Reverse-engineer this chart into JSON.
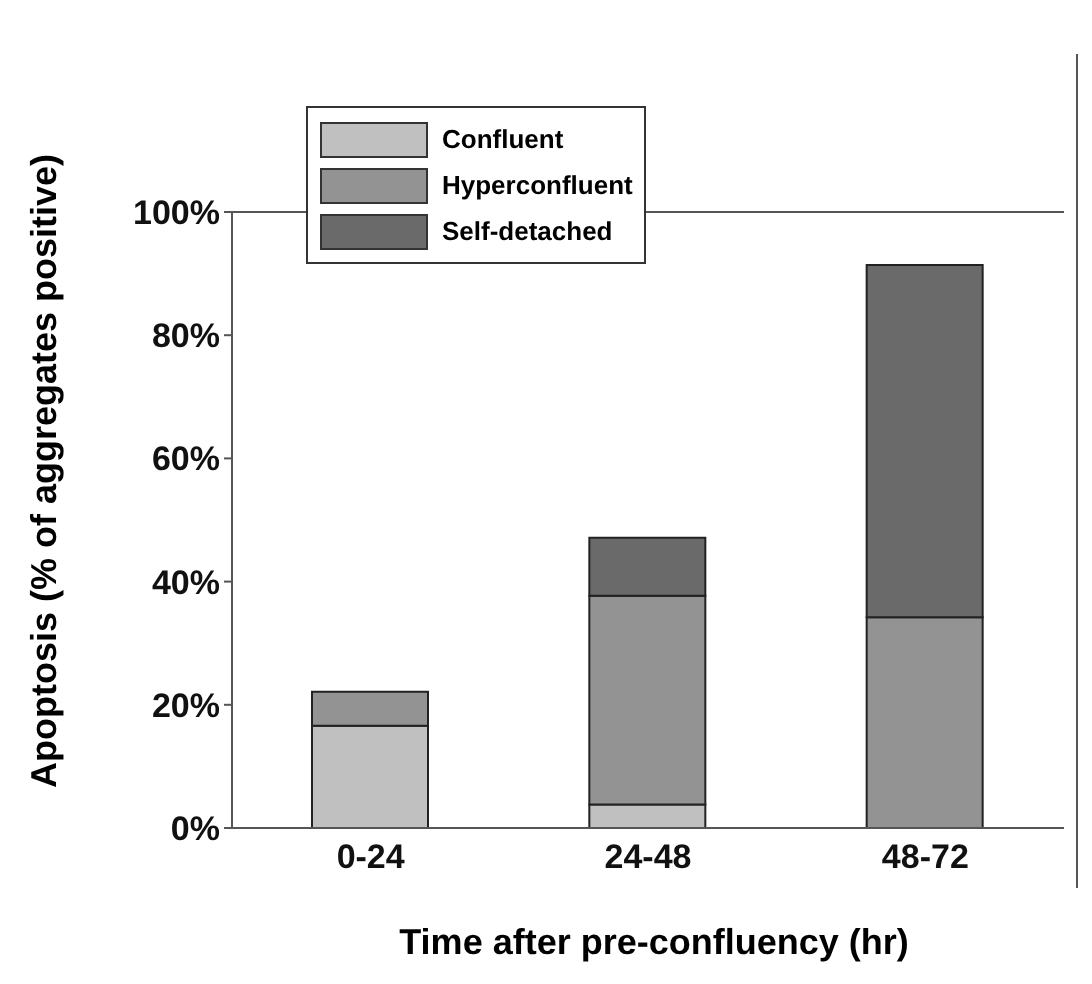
{
  "chart_data": {
    "type": "bar",
    "stacked": true,
    "xlabel": "Time after pre-confluency (hr)",
    "ylabel": "Apoptosis (% of aggregates positive)",
    "categories": [
      "0-24",
      "24-48",
      "48-72"
    ],
    "series": [
      {
        "name": "Confluent",
        "color": "#c0c0c0",
        "values": [
          16.6,
          3.8,
          0
        ]
      },
      {
        "name": "Hyperconfluent",
        "color": "#939393",
        "values": [
          5.5,
          33.9,
          34.2
        ]
      },
      {
        "name": "Self-detached",
        "color": "#6a6a6a",
        "values": [
          0,
          9.4,
          57.2
        ]
      }
    ],
    "ylim": [
      0,
      100
    ],
    "yticks": [
      {
        "value": 0,
        "label": "0%"
      },
      {
        "value": 20,
        "label": "20%"
      },
      {
        "value": 40,
        "label": "40%"
      },
      {
        "value": 60,
        "label": "60%"
      },
      {
        "value": 80,
        "label": "80%"
      },
      {
        "value": 100,
        "label": "100%"
      }
    ],
    "grid": false,
    "legend": "top left"
  }
}
